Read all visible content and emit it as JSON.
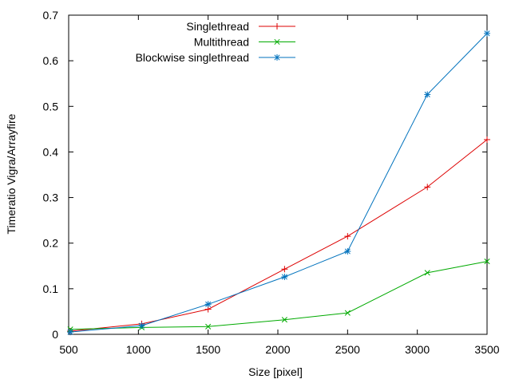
{
  "chart_data": {
    "type": "line",
    "title": "",
    "xlabel": "Size [pixel]",
    "ylabel": "Timeratio Vigra/Arrayfire",
    "xlim": [
      500,
      3500
    ],
    "ylim": [
      0,
      0.7
    ],
    "x_ticks": [
      500,
      1000,
      1500,
      2000,
      2500,
      3000,
      3500
    ],
    "x_tick_labels": [
      "500",
      "1000",
      "1500",
      "2000",
      "2500",
      "3000",
      "3500"
    ],
    "y_ticks": [
      0,
      0.1,
      0.2,
      0.3,
      0.4,
      0.5,
      0.6,
      0.7
    ],
    "y_tick_labels": [
      "0",
      "0.1",
      "0.2",
      "0.3",
      "0.4",
      "0.5",
      "0.6",
      "0.7"
    ],
    "grid": false,
    "legend_position": "top-center",
    "series": [
      {
        "name": "Singlethread",
        "color": "#dd0000",
        "marker": "plus",
        "x": [
          512,
          1024,
          1500,
          2048,
          2500,
          3072,
          3500
        ],
        "y": [
          0.007,
          0.023,
          0.055,
          0.143,
          0.215,
          0.323,
          0.427
        ]
      },
      {
        "name": "Multithread",
        "color": "#00aa00",
        "marker": "cross",
        "x": [
          512,
          1024,
          1500,
          2048,
          2500,
          3072,
          3500
        ],
        "y": [
          0.011,
          0.015,
          0.017,
          0.032,
          0.047,
          0.135,
          0.16
        ]
      },
      {
        "name": "Blockwise singlethread",
        "color": "#0072bd",
        "marker": "star",
        "x": [
          512,
          1024,
          1500,
          2048,
          2500,
          3072,
          3500
        ],
        "y": [
          0.005,
          0.019,
          0.066,
          0.126,
          0.182,
          0.526,
          0.66
        ]
      }
    ]
  }
}
